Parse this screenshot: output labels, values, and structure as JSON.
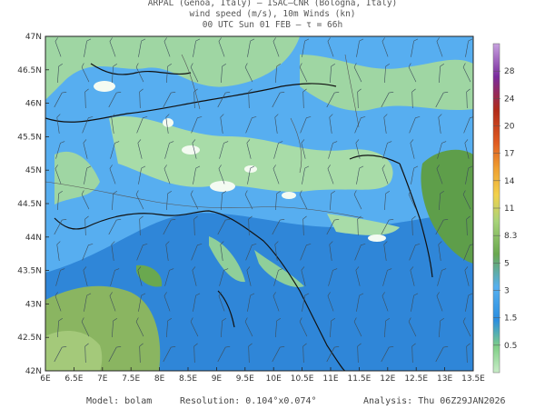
{
  "header": {
    "title": "ARPAL (Genoa, Italy)  –  ISAC–CNR (Bologna, Italy)",
    "subtitle": "wind speed (m/s), 10m Winds (kn)",
    "timeline": "00 UTC Sun 01 FEB  –  τ = 66h"
  },
  "lat_labels": [
    "47N",
    "46.5N",
    "46N",
    "45.5N",
    "45N",
    "44.5N",
    "44N",
    "43.5N",
    "43N",
    "42.5N",
    "42N"
  ],
  "lon_labels": [
    "6E",
    "6.5E",
    "7E",
    "7.5E",
    "8E",
    "8.5E",
    "9E",
    "9.5E",
    "10E",
    "10.5E",
    "11E",
    "11.5E",
    "12E",
    "12.5E",
    "13E",
    "13.5E"
  ],
  "colorbar": {
    "levels": [
      "0.5",
      "1.5",
      "3",
      "5",
      "8.3",
      "11",
      "14",
      "17",
      "20",
      "24",
      "28"
    ],
    "colors": [
      "#f7fbf4",
      "#7fcf86",
      "#9fe0a8",
      "#1e7fe0",
      "#3aa0f0",
      "#6aa84f",
      "#b6d97a",
      "#f5c242",
      "#f08a24",
      "#d63a1a",
      "#9a1a1a",
      "#7a2b9e",
      "#b07fd0"
    ]
  },
  "footer": {
    "model": "Model: bolam",
    "resolution": "Resolution: 0.104°x0.074°",
    "analysis": "Analysis: Thu 06Z29JAN2026"
  }
}
